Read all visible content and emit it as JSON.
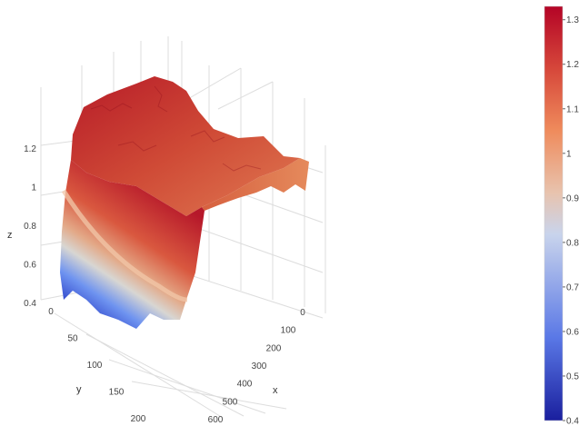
{
  "chart_data": {
    "type": "surface",
    "title": "",
    "colorscale": "coolwarm",
    "colors": {
      "low": "#1a1f9e",
      "lower_mid": "#6f92f3",
      "mid": "#dcdcdc",
      "upper_mid": "#f08a5a",
      "high": "#b40426"
    },
    "x_axis": {
      "label": "x",
      "ticks": [
        "0",
        "100",
        "200",
        "300",
        "400",
        "500",
        "600"
      ],
      "range": [
        0,
        640
      ]
    },
    "y_axis": {
      "label": "y",
      "ticks": [
        "0",
        "50",
        "100",
        "150",
        "200"
      ],
      "range": [
        0,
        210
      ]
    },
    "z_axis": {
      "label": "z",
      "ticks": [
        "0.4",
        "0.6",
        "0.8",
        "1",
        "1.2"
      ],
      "range": [
        0.4,
        1.33
      ]
    },
    "colorbar": {
      "ticks": [
        "0.4",
        "0.5",
        "0.6",
        "0.7",
        "0.8",
        "0.9",
        "1",
        "1.1",
        "1.2",
        "1.3"
      ],
      "range": [
        0.4,
        1.33
      ]
    },
    "grid": true,
    "surface_notes": "Terrain-like surface: low (~0.4-0.6) at small x across y, rising steeply to a plateau ~1.0-1.3 for larger x; highest near x≈300-500, y≈150-200."
  }
}
